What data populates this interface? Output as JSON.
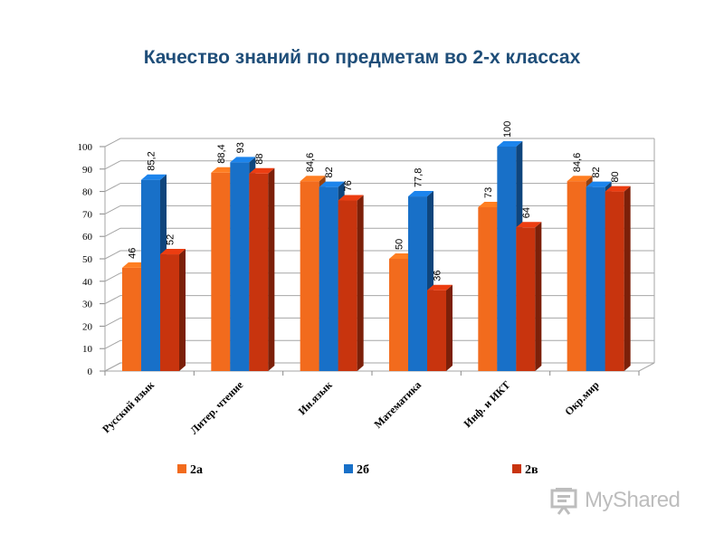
{
  "chart_data": {
    "type": "bar",
    "title": "Качество знаний по предметам во 2-х классах",
    "categories": [
      "Русский язык",
      "Литер. чтение",
      "Ин.язык",
      "Математика",
      "Инф. и ИКТ",
      "Окр.мир"
    ],
    "series": [
      {
        "name": "2а",
        "color": "#F26B1D",
        "values": [
          46,
          88.4,
          84.6,
          50,
          73,
          84.6
        ],
        "labels": [
          "46",
          "88,4",
          "84,6",
          "50",
          "73",
          "84,6"
        ]
      },
      {
        "name": "2б",
        "color": "#1870C8",
        "values": [
          85.2,
          93,
          82,
          77.8,
          100,
          82
        ],
        "labels": [
          "85,2",
          "93",
          "82",
          "77,8",
          "100",
          "82"
        ]
      },
      {
        "name": "2в",
        "color": "#C8340E",
        "values": [
          52,
          88,
          76,
          36,
          64,
          80
        ],
        "labels": [
          "52",
          "88",
          "76",
          "36",
          "64",
          "80"
        ]
      }
    ],
    "ylim": [
      0,
      100
    ],
    "yticks": [
      "0",
      "10",
      "20",
      "30",
      "40",
      "50",
      "60",
      "70",
      "80",
      "90",
      "100"
    ],
    "xlabel": "",
    "ylabel": "",
    "grid": true,
    "legend_position": "bottom"
  },
  "watermark": {
    "text": "MyShared",
    "icon": "presentation-board-icon"
  }
}
